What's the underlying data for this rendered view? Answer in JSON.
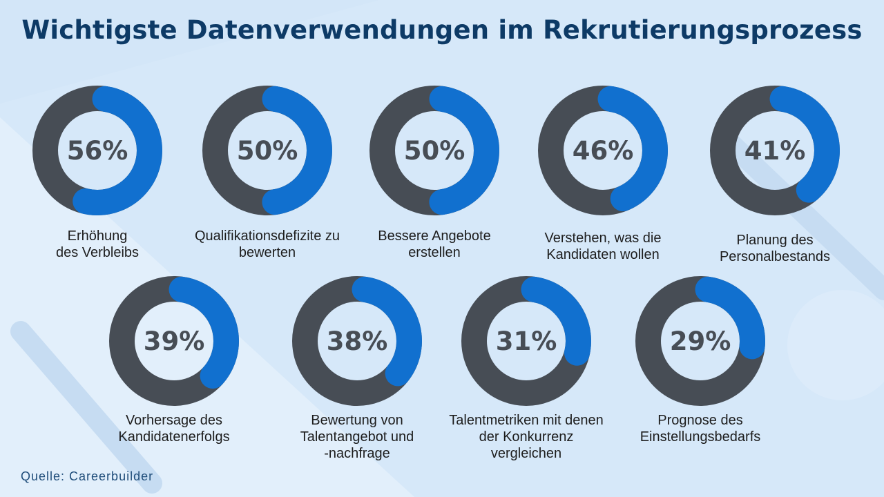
{
  "title": "Wichtigste Datenverwendungen im Rekrutierungsprozess",
  "source": "Quelle: Careerbuilder",
  "colors": {
    "filled": "#1170cf",
    "remainder": "#474d55",
    "title": "#0d3a66",
    "background": "#d3e6f8"
  },
  "chart_data": {
    "type": "donut",
    "title": "Wichtigste Datenverwendungen im Rekrutierungsprozess",
    "unit": "%",
    "items": [
      {
        "label": "Erhöhung des Verbleibs",
        "lines": [
          "Erhöhung",
          "des Verbleibs"
        ],
        "value": 56,
        "display": "56%"
      },
      {
        "label": "Qualifikationsdefizite zu bewerten",
        "lines": [
          "Qualifikationsdefizite zu",
          "bewerten"
        ],
        "value": 50,
        "display": "50%"
      },
      {
        "label": "Bessere Angebote erstellen",
        "lines": [
          "Bessere Angebote",
          "erstellen"
        ],
        "value": 50,
        "display": "50%"
      },
      {
        "label": "Verstehen, was die Kandidaten wollen",
        "lines": [
          "Verstehen, was die",
          "Kandidaten wollen"
        ],
        "value": 46,
        "display": "46%"
      },
      {
        "label": "Planung des Personalbestands",
        "lines": [
          "Planung des",
          "Personalbestands"
        ],
        "value": 41,
        "display": "41%"
      },
      {
        "label": "Vorhersage des Kandidatenerfolgs",
        "lines": [
          "Vorhersage des",
          "Kandidatenerfolgs"
        ],
        "value": 39,
        "display": "39%"
      },
      {
        "label": "Bewertung von Talentangebot und -nachfrage",
        "lines": [
          "Bewertung von",
          "Talentangebot und",
          "-nachfrage"
        ],
        "value": 38,
        "display": "38%"
      },
      {
        "label": "Talentmetriken mit denen der Konkurrenz vergleichen",
        "lines": [
          "Talentmetriken mit denen",
          "der Konkurrenz",
          "vergleichen"
        ],
        "value": 31,
        "display": "31%"
      },
      {
        "label": "Prognose des Einstellungsbedarfs",
        "lines": [
          "Prognose des",
          "Einstellungsbedarfs"
        ],
        "value": 29,
        "display": "29%"
      }
    ]
  }
}
